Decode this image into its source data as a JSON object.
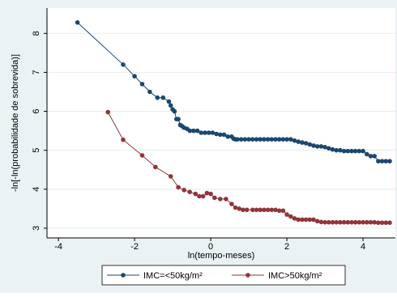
{
  "chart_data": {
    "type": "line",
    "title": "",
    "xlabel": "ln(tempo-meses)",
    "ylabel": "-ln[-ln(probabilidade de sobrevida)]",
    "xlim": [
      -4.3,
      4.85
    ],
    "ylim": [
      2.75,
      8.65
    ],
    "x_ticks": [
      -4,
      -2,
      0,
      2,
      4
    ],
    "y_ticks": [
      3,
      4,
      5,
      6,
      7,
      8
    ],
    "grid": "horizontal",
    "legend_position": "bottom",
    "series": [
      {
        "name": "IMC=<50kg/m²",
        "color": "#1a476f",
        "x": [
          -3.5,
          -2.3,
          -2.0,
          -1.8,
          -1.6,
          -1.4,
          -1.25,
          -1.1,
          -1.05,
          -1.0,
          -0.95,
          -0.9,
          -0.85,
          -0.8,
          -0.75,
          -0.7,
          -0.62,
          -0.55,
          -0.45,
          -0.35,
          -0.25,
          -0.15,
          -0.05,
          0.05,
          0.15,
          0.25,
          0.35,
          0.45,
          0.55,
          0.6,
          0.65,
          0.7,
          0.8,
          0.9,
          1.0,
          1.1,
          1.2,
          1.3,
          1.4,
          1.5,
          1.6,
          1.7,
          1.8,
          1.9,
          2.0,
          2.1,
          2.2,
          2.3,
          2.4,
          2.5,
          2.6,
          2.7,
          2.8,
          2.9,
          3.0,
          3.1,
          3.2,
          3.3,
          3.4,
          3.5,
          3.6,
          3.7,
          3.8,
          3.9,
          4.0,
          4.1,
          4.2,
          4.3,
          4.4,
          4.5,
          4.6,
          4.7
        ],
        "y": [
          8.28,
          7.2,
          6.9,
          6.7,
          6.5,
          6.35,
          6.35,
          6.25,
          6.15,
          6.05,
          6.0,
          5.8,
          5.8,
          5.65,
          5.62,
          5.58,
          5.55,
          5.5,
          5.5,
          5.5,
          5.45,
          5.45,
          5.45,
          5.45,
          5.42,
          5.4,
          5.4,
          5.35,
          5.35,
          5.3,
          5.28,
          5.28,
          5.28,
          5.28,
          5.28,
          5.28,
          5.28,
          5.28,
          5.28,
          5.28,
          5.28,
          5.28,
          5.28,
          5.28,
          5.28,
          5.28,
          5.25,
          5.22,
          5.2,
          5.18,
          5.15,
          5.12,
          5.1,
          5.1,
          5.08,
          5.05,
          5.02,
          5.0,
          5.0,
          4.98,
          4.98,
          4.98,
          4.98,
          4.98,
          4.98,
          4.9,
          4.85,
          4.85,
          4.72,
          4.72,
          4.72,
          4.72
        ]
      },
      {
        "name": "IMC>50kg/m²",
        "color": "#90353b",
        "x": [
          -2.7,
          -2.3,
          -1.8,
          -1.45,
          -1.05,
          -0.85,
          -0.7,
          -0.55,
          -0.4,
          -0.3,
          -0.2,
          -0.1,
          0.0,
          0.1,
          0.25,
          0.4,
          0.55,
          0.65,
          0.75,
          0.85,
          0.95,
          1.1,
          1.2,
          1.3,
          1.4,
          1.5,
          1.6,
          1.7,
          1.8,
          1.9,
          2.0,
          2.1,
          2.2,
          2.3,
          2.4,
          2.5,
          2.6,
          2.7,
          2.8,
          2.9,
          3.0,
          3.1,
          3.2,
          3.3,
          3.4,
          3.5,
          3.6,
          3.7,
          3.8,
          3.9,
          4.0,
          4.1,
          4.2,
          4.3,
          4.4,
          4.5,
          4.6,
          4.7
        ],
        "y": [
          5.98,
          5.27,
          4.87,
          4.57,
          4.33,
          4.05,
          3.98,
          3.93,
          3.88,
          3.82,
          3.82,
          3.9,
          3.88,
          3.78,
          3.75,
          3.75,
          3.62,
          3.53,
          3.5,
          3.47,
          3.47,
          3.47,
          3.47,
          3.47,
          3.47,
          3.47,
          3.47,
          3.47,
          3.45,
          3.45,
          3.35,
          3.3,
          3.25,
          3.22,
          3.22,
          3.22,
          3.22,
          3.22,
          3.18,
          3.16,
          3.15,
          3.15,
          3.15,
          3.15,
          3.15,
          3.15,
          3.15,
          3.15,
          3.15,
          3.15,
          3.15,
          3.15,
          3.15,
          3.15,
          3.14,
          3.14,
          3.14,
          3.14
        ]
      }
    ]
  }
}
